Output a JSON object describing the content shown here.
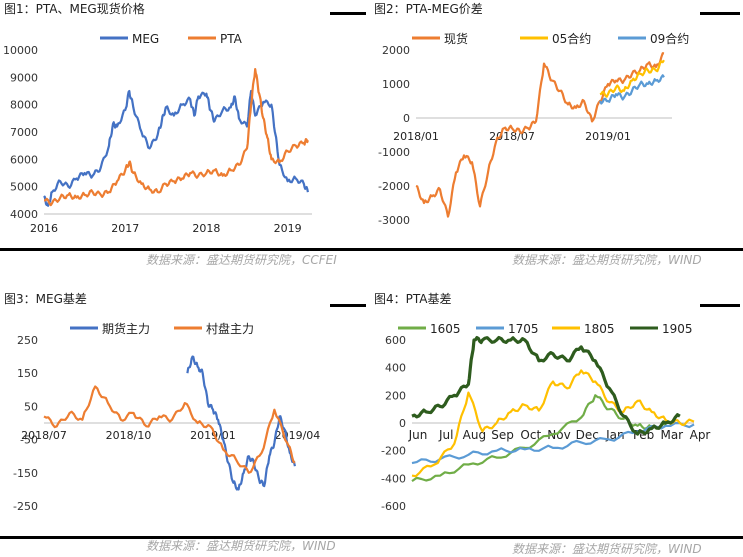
{
  "panels": [
    {
      "title": "图1：PTA、MEG现货价格",
      "source": "数据来源：盛达期货研究院，CCFEI"
    },
    {
      "title": "图2：PTA-MEG价差",
      "source": "数据来源：盛达期货研究院，WIND"
    },
    {
      "title": "图3：MEG基差",
      "source": "数据来源：盛达期货研究院，WIND"
    },
    {
      "title": "图4：PTA基差",
      "source": "数据来源：盛达期货研究院，WIND"
    }
  ],
  "chart_data": [
    {
      "type": "line",
      "title": "图1：PTA、MEG现货价格",
      "x_ticks": [
        "2016",
        "2017",
        "2018",
        "2019"
      ],
      "x_range": [
        2016.0,
        2019.3
      ],
      "ylim": [
        4000,
        10000
      ],
      "y_ticks": [
        4000,
        5000,
        6000,
        7000,
        8000,
        9000,
        10000
      ],
      "legend_position": "top",
      "series": [
        {
          "name": "MEG",
          "color": "#4472c4",
          "x": [
            2016.0,
            2016.05,
            2016.1,
            2016.2,
            2016.3,
            2016.4,
            2016.5,
            2016.6,
            2016.7,
            2016.8,
            2016.85,
            2016.9,
            2017.0,
            2017.05,
            2017.1,
            2017.2,
            2017.3,
            2017.4,
            2017.45,
            2017.5,
            2017.6,
            2017.7,
            2017.8,
            2017.85,
            2017.9,
            2018.0,
            2018.05,
            2018.1,
            2018.2,
            2018.3,
            2018.35,
            2018.4,
            2018.5,
            2018.55,
            2018.6,
            2018.7,
            2018.8,
            2018.85,
            2018.9,
            2019.0,
            2019.1,
            2019.2,
            2019.25
          ],
          "y": [
            4600,
            4300,
            4800,
            5200,
            5000,
            5300,
            5500,
            5400,
            5700,
            6500,
            7300,
            7200,
            7800,
            8500,
            7900,
            7000,
            6400,
            6900,
            7400,
            7900,
            7600,
            8000,
            8200,
            7600,
            8300,
            8400,
            7800,
            7400,
            7800,
            7900,
            8300,
            7500,
            7200,
            8500,
            7600,
            8100,
            8000,
            6900,
            5800,
            5200,
            5300,
            5100,
            4800
          ]
        },
        {
          "name": "PTA",
          "color": "#ed7d31",
          "x": [
            2016.0,
            2016.1,
            2016.2,
            2016.3,
            2016.4,
            2016.5,
            2016.6,
            2016.7,
            2016.8,
            2016.9,
            2017.0,
            2017.05,
            2017.1,
            2017.2,
            2017.3,
            2017.4,
            2017.5,
            2017.6,
            2017.7,
            2017.8,
            2017.9,
            2018.0,
            2018.1,
            2018.2,
            2018.3,
            2018.4,
            2018.5,
            2018.55,
            2018.6,
            2018.65,
            2018.7,
            2018.75,
            2018.8,
            2018.9,
            2019.0,
            2019.1,
            2019.2,
            2019.25
          ],
          "y": [
            4500,
            4400,
            4600,
            4700,
            4600,
            4700,
            4800,
            4700,
            4800,
            5200,
            5600,
            5900,
            5500,
            5100,
            4900,
            4800,
            5100,
            5200,
            5300,
            5500,
            5400,
            5500,
            5600,
            5400,
            5600,
            5800,
            6400,
            8000,
            9300,
            8400,
            7500,
            6800,
            6000,
            5900,
            6300,
            6500,
            6600,
            6700
          ]
        }
      ]
    },
    {
      "type": "line",
      "title": "图2：PTA-MEG价差",
      "x_ticks": [
        "2018/01",
        "2018/07",
        "2019/01"
      ],
      "x_range": [
        0,
        16
      ],
      "ylim": [
        -3000,
        2000
      ],
      "y_ticks": [
        -3000,
        -2000,
        -1000,
        0,
        1000,
        2000
      ],
      "legend_position": "top",
      "series": [
        {
          "name": "现货",
          "color": "#ed7d31",
          "x": [
            0,
            0.5,
            1,
            1.5,
            2,
            2.5,
            3,
            3.5,
            4,
            4.5,
            5,
            5.5,
            6,
            6.5,
            7,
            7.5,
            8,
            8.5,
            9,
            9.5,
            10,
            10.5,
            11,
            11.5,
            12,
            12.5,
            13,
            13.5,
            14,
            14.5,
            15,
            15.5
          ],
          "y": [
            -2000,
            -2500,
            -2300,
            -2100,
            -2900,
            -1600,
            -1100,
            -1300,
            -2600,
            -1600,
            -700,
            -300,
            -300,
            -400,
            -300,
            -100,
            1600,
            1100,
            800,
            400,
            300,
            500,
            -100,
            500,
            1000,
            1100,
            1100,
            1300,
            1400,
            1600,
            1500,
            1900
          ]
        },
        {
          "name": "05合约",
          "color": "#ffc000",
          "x": [
            11.5,
            12,
            12.5,
            13,
            13.5,
            14,
            14.5,
            15,
            15.5
          ],
          "y": [
            700,
            700,
            900,
            800,
            1100,
            1300,
            1400,
            1400,
            1700
          ]
        },
        {
          "name": "09合约",
          "color": "#5b9bd5",
          "x": [
            11.5,
            12,
            12.5,
            13,
            13.5,
            14,
            14.5,
            15,
            15.5
          ],
          "y": [
            500,
            500,
            700,
            600,
            800,
            1000,
            1000,
            1100,
            1200
          ]
        }
      ]
    },
    {
      "type": "line",
      "title": "图3：MEG基差",
      "x_ticks": [
        "2018/07",
        "2018/10",
        "2019/01",
        "2019/04"
      ],
      "x_range": [
        0,
        10
      ],
      "ylim": [
        -250,
        250
      ],
      "y_ticks": [
        -250,
        -150,
        -50,
        50,
        150,
        250
      ],
      "legend_position": "top",
      "series": [
        {
          "name": "期货主力",
          "color": "#4472c4",
          "x": [
            5.6,
            5.8,
            6.0,
            6.2,
            6.4,
            6.6,
            6.8,
            7.0,
            7.2,
            7.4,
            7.6,
            7.8,
            8.0,
            8.2,
            8.4,
            8.6,
            8.8,
            9.0,
            9.2,
            9.4,
            9.6,
            9.8
          ],
          "y": [
            150,
            200,
            170,
            150,
            60,
            40,
            10,
            -50,
            -120,
            -180,
            -200,
            -150,
            -100,
            -120,
            -170,
            -190,
            -100,
            -60,
            20,
            -20,
            -90,
            -130
          ]
        },
        {
          "name": "村盘主力",
          "color": "#ed7d31",
          "x": [
            0,
            0.5,
            1,
            1.5,
            2,
            2.5,
            3,
            3.5,
            4,
            4.5,
            5,
            5.5,
            6,
            6.5,
            7,
            7.5,
            8,
            8.5,
            9,
            9.5,
            9.8
          ],
          "y": [
            20,
            -10,
            30,
            10,
            110,
            60,
            10,
            30,
            -10,
            20,
            10,
            60,
            0,
            -10,
            -80,
            -110,
            -150,
            -90,
            40,
            -60,
            -120
          ]
        }
      ]
    },
    {
      "type": "line",
      "title": "图4：PTA基差",
      "x_ticks": [
        "Jun",
        "Jul",
        "Aug",
        "Sep",
        "Oct",
        "Nov",
        "Dec",
        "Jan",
        "Feb",
        "Mar",
        "Apr"
      ],
      "x_range": [
        0,
        10
      ],
      "ylim": [
        -600,
        600
      ],
      "y_ticks": [
        -600,
        -400,
        -200,
        0,
        200,
        400,
        600
      ],
      "legend_position": "top",
      "series": [
        {
          "name": "1605",
          "color": "#70ad47",
          "x": [
            0,
            1,
            2,
            3,
            4,
            5,
            6,
            6.5,
            7,
            7.5,
            8,
            8.5,
            9
          ],
          "y": [
            -420,
            -380,
            -300,
            -250,
            -180,
            -80,
            40,
            200,
            100,
            30,
            -20,
            -30,
            -20
          ]
        },
        {
          "name": "1705",
          "color": "#5b9bd5",
          "x": [
            0,
            1,
            2,
            3,
            4,
            5,
            6,
            7,
            8,
            9,
            10
          ],
          "y": [
            -290,
            -260,
            -230,
            -200,
            -190,
            -180,
            -140,
            -120,
            -60,
            -20,
            -10
          ]
        },
        {
          "name": "1805",
          "color": "#ffc000",
          "x": [
            0,
            0.8,
            1.5,
            2,
            2.5,
            3,
            3.5,
            4,
            4.5,
            5,
            5.5,
            6,
            6.5,
            7,
            7.5,
            8,
            8.5,
            9,
            9.5,
            10
          ],
          "y": [
            -380,
            -300,
            -150,
            220,
            -60,
            0,
            80,
            130,
            90,
            300,
            250,
            380,
            300,
            150,
            80,
            160,
            80,
            20,
            0,
            10
          ]
        },
        {
          "name": "1905",
          "color": "#2e5c1e",
          "x": [
            0,
            0.5,
            1,
            1.5,
            2,
            2.2,
            2.5,
            3,
            3.5,
            4,
            4.5,
            5,
            5.5,
            6,
            6.5,
            7,
            7.5,
            8,
            8.5,
            9,
            9.5
          ],
          "y": [
            50,
            80,
            120,
            200,
            280,
            600,
            600,
            600,
            600,
            600,
            450,
            500,
            450,
            550,
            450,
            250,
            50,
            -80,
            -40,
            0,
            50
          ]
        }
      ]
    }
  ]
}
